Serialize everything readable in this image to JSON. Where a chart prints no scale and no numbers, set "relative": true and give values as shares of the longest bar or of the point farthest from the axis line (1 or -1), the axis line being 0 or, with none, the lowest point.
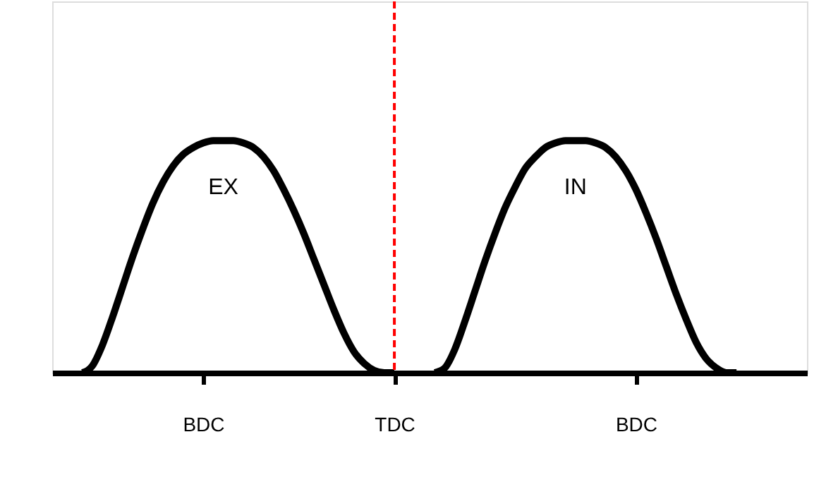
{
  "chart_data": {
    "type": "line",
    "relative": true,
    "categories": [
      null,
      null,
      null,
      null,
      null,
      null,
      null,
      null,
      null,
      null,
      null,
      null,
      null,
      null,
      null,
      "BDC",
      null,
      null,
      null,
      null,
      null,
      null,
      null,
      null,
      null,
      null,
      null,
      null,
      null,
      null,
      null,
      null,
      null,
      null,
      "TDC",
      null,
      null,
      null,
      null,
      null,
      null,
      null,
      null,
      null,
      null,
      null,
      null,
      null,
      null,
      null,
      null,
      null,
      null,
      null,
      null,
      null,
      null,
      null,
      "BDC",
      null,
      null,
      null,
      null,
      null,
      null,
      null,
      null,
      null,
      null,
      null,
      null,
      null,
      null,
      null,
      null,
      null
    ],
    "series": [
      {
        "name": "EX",
        "color": "#000000",
        "values": [
          null,
          null,
          null,
          0,
          0.03,
          0.12,
          0.24,
          0.37,
          0.5,
          0.62,
          0.73,
          0.82,
          0.89,
          0.94,
          0.97,
          0.99,
          1.0,
          1.0,
          1.0,
          0.99,
          0.97,
          0.93,
          0.87,
          0.79,
          0.7,
          0.6,
          0.49,
          0.38,
          0.27,
          0.17,
          0.09,
          0.04,
          0.01,
          0,
          0,
          null,
          null,
          null,
          null,
          null,
          null,
          null,
          null,
          null,
          null,
          null,
          null,
          null,
          null,
          null,
          null,
          null,
          null,
          null,
          null,
          null,
          null,
          null,
          null,
          null,
          null,
          null,
          null,
          null,
          null,
          null,
          null,
          null,
          null,
          null,
          null,
          null,
          null,
          null,
          null,
          null
        ]
      },
      {
        "name": "IN",
        "color": "#000000",
        "values": [
          null,
          null,
          null,
          null,
          null,
          null,
          null,
          null,
          null,
          null,
          null,
          null,
          null,
          null,
          null,
          null,
          null,
          null,
          null,
          null,
          null,
          null,
          null,
          null,
          null,
          null,
          null,
          null,
          null,
          null,
          null,
          null,
          null,
          null,
          null,
          null,
          null,
          null,
          0,
          0.02,
          0.1,
          0.22,
          0.35,
          0.48,
          0.6,
          0.71,
          0.8,
          0.88,
          0.93,
          0.97,
          0.99,
          1.0,
          1.0,
          1.0,
          0.99,
          0.97,
          0.93,
          0.87,
          0.79,
          0.69,
          0.58,
          0.46,
          0.34,
          0.23,
          0.13,
          0.06,
          0.02,
          0,
          0,
          null,
          null,
          null,
          null,
          null,
          null,
          null
        ]
      }
    ],
    "ref_lines": [
      {
        "axis": "x",
        "value": "TDC",
        "color": "#ff0000",
        "line_style": "dashed"
      }
    ],
    "grid": false,
    "marker": "none",
    "line_style": "solid",
    "tick_labels": "x"
  }
}
